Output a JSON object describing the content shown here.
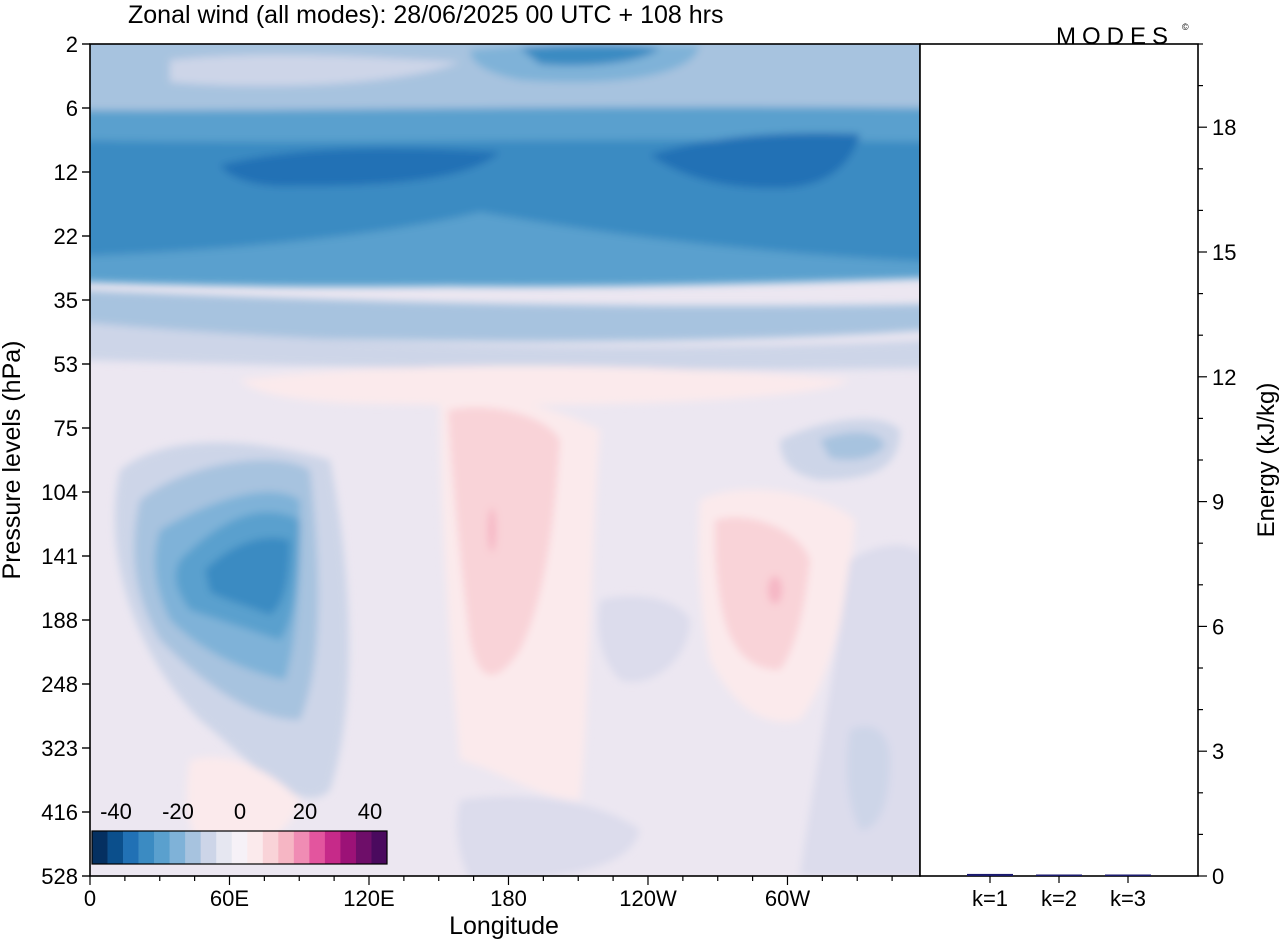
{
  "title": "Zonal wind (all modes):  28/06/2025  00 UTC  + 108 hrs",
  "logo": {
    "text": "MODES",
    "mark": "©"
  },
  "colors": {
    "negative_scale": [
      "#053061",
      "#0b4f8c",
      "#2171b5",
      "#3b8bc2",
      "#5aa0ce",
      "#7fb2d8",
      "#a7c3df",
      "#cdd5e8",
      "#e6e7f1",
      "#f6f1f7"
    ],
    "positive_scale": [
      "#fbeaec",
      "#f9d3d8",
      "#f6b6c4",
      "#f08cb4",
      "#e3559e",
      "#c62a89",
      "#9c1277",
      "#6e0e69",
      "#4a0a5e"
    ]
  },
  "chart_data": [
    {
      "type": "heatmap",
      "title": "Zonal wind (all modes):  28/06/2025  00 UTC  + 108 hrs",
      "xlabel": "Longitude",
      "ylabel": "Pressure levels (hPa)",
      "x_ticks": [
        "0",
        "60E",
        "120E",
        "180",
        "120W",
        "60W"
      ],
      "x_tick_degrees": [
        0,
        60,
        120,
        180,
        240,
        300
      ],
      "xlim": [
        0,
        357
      ],
      "y_ticks": [
        "2",
        "6",
        "12",
        "22",
        "35",
        "53",
        "75",
        "104",
        "141",
        "188",
        "248",
        "323",
        "416",
        "528"
      ],
      "y_scale": "model levels",
      "colorbar": {
        "labels": [
          "-40",
          "-20",
          "0",
          "20",
          "40"
        ],
        "min": -40,
        "max": 40,
        "step": 4.444
      },
      "features": [
        {
          "region": "stratosphere 6-35 hPa, all longitudes",
          "value": -28
        },
        {
          "region": "10-15 hPa jet core, 50E-110E and 150W-60W",
          "value": -34
        },
        {
          "region": "upper troposphere 104-323 hPa near 60E-90E",
          "value": -27
        },
        {
          "region": "upper troposphere 75-248 hPa near 170E-190E",
          "value": 6
        },
        {
          "region": "upper troposphere 104-248 hPa near 60W",
          "value": 6
        }
      ]
    },
    {
      "type": "bar",
      "ylabel": "Energy (kJ/kg)",
      "categories": [
        "k=1",
        "k=2",
        "k=3"
      ],
      "values": [
        0.05,
        0.03,
        0.0
      ],
      "ylim": [
        0,
        20
      ],
      "y_ticks": [
        "0",
        "3",
        "6",
        "9",
        "12",
        "15",
        "18"
      ],
      "y_tick_values": [
        0,
        3,
        6,
        9,
        12,
        15,
        18
      ]
    }
  ]
}
